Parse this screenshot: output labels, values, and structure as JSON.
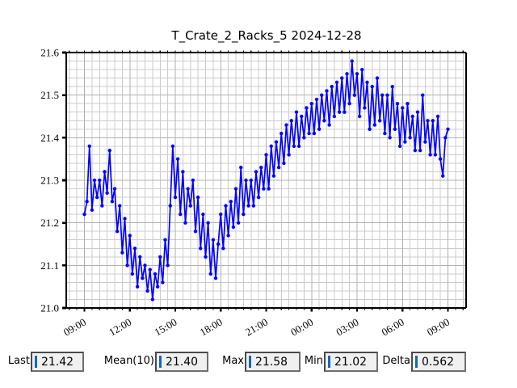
{
  "title": "T_Crate_2_Racks_5 2024-12-28",
  "chart_data": {
    "type": "line",
    "title": "T_Crate_2_Racks_5 2024-12-28",
    "xlabel": "",
    "ylabel": "",
    "ylim": [
      21.0,
      21.6
    ],
    "ytick_labels": [
      "21.0",
      "21.1",
      "21.2",
      "21.3",
      "21.4",
      "21.5",
      "21.6"
    ],
    "ytick_values": [
      21.0,
      21.1,
      21.2,
      21.3,
      21.4,
      21.5,
      21.6
    ],
    "y_minor_step": 0.02,
    "xtick_labels": [
      "09:00",
      "12:00",
      "15:00",
      "18:00",
      "21:00",
      "00:00",
      "03:00",
      "06:00",
      "09:00"
    ],
    "xtick_hours": [
      0,
      3,
      6,
      9,
      12,
      15,
      18,
      21,
      24
    ],
    "x_minor_step_hours": 0.5,
    "x_pad_hours": 1.2,
    "grid": true,
    "legend": "none",
    "start_time": "09:00",
    "step_minutes": 10,
    "values": [
      21.22,
      21.25,
      21.38,
      21.23,
      21.3,
      21.26,
      21.3,
      21.24,
      21.32,
      21.27,
      21.37,
      21.25,
      21.28,
      21.18,
      21.24,
      21.13,
      21.21,
      21.1,
      21.17,
      21.08,
      21.14,
      21.05,
      21.12,
      21.07,
      21.1,
      21.04,
      21.09,
      21.02,
      21.08,
      21.05,
      21.12,
      21.06,
      21.16,
      21.1,
      21.24,
      21.38,
      21.26,
      21.35,
      21.22,
      21.32,
      21.2,
      21.28,
      21.24,
      21.3,
      21.18,
      21.26,
      21.14,
      21.22,
      21.12,
      21.2,
      21.08,
      21.16,
      21.07,
      21.15,
      21.22,
      21.14,
      21.24,
      21.17,
      21.25,
      21.19,
      21.28,
      21.2,
      21.33,
      21.22,
      21.3,
      21.24,
      21.3,
      21.24,
      21.32,
      21.26,
      21.33,
      21.28,
      21.36,
      21.28,
      21.38,
      21.31,
      21.39,
      21.33,
      21.41,
      21.34,
      21.43,
      21.36,
      21.44,
      21.38,
      21.46,
      21.38,
      21.45,
      21.4,
      21.47,
      21.41,
      21.48,
      21.41,
      21.49,
      21.42,
      21.5,
      21.44,
      21.51,
      21.43,
      21.52,
      21.45,
      21.53,
      21.46,
      21.54,
      21.46,
      21.55,
      21.48,
      21.58,
      21.5,
      21.55,
      21.45,
      21.56,
      21.47,
      21.53,
      21.42,
      21.52,
      21.43,
      21.54,
      21.44,
      21.5,
      21.41,
      21.5,
      21.4,
      21.52,
      21.42,
      21.48,
      21.38,
      21.47,
      21.39,
      21.48,
      21.4,
      21.45,
      21.37,
      21.46,
      21.37,
      21.5,
      21.39,
      21.44,
      21.36,
      21.44,
      21.36,
      21.45,
      21.35,
      21.31,
      21.4,
      21.42
    ]
  },
  "stats": [
    {
      "label": "Last",
      "value": "21.42"
    },
    {
      "label": "Mean(10)",
      "value": "21.40"
    },
    {
      "label": "Max",
      "value": "21.58"
    },
    {
      "label": "Min",
      "value": "21.02"
    },
    {
      "label": "Delta",
      "value": "0.562"
    }
  ],
  "colors": {
    "line": "#0000ff",
    "grid_minor": "#cccccc",
    "grid_major": "#b0b0b0",
    "spine": "#000000",
    "cursor": "#1565c0",
    "entry_bg": "#f0f0f0"
  }
}
